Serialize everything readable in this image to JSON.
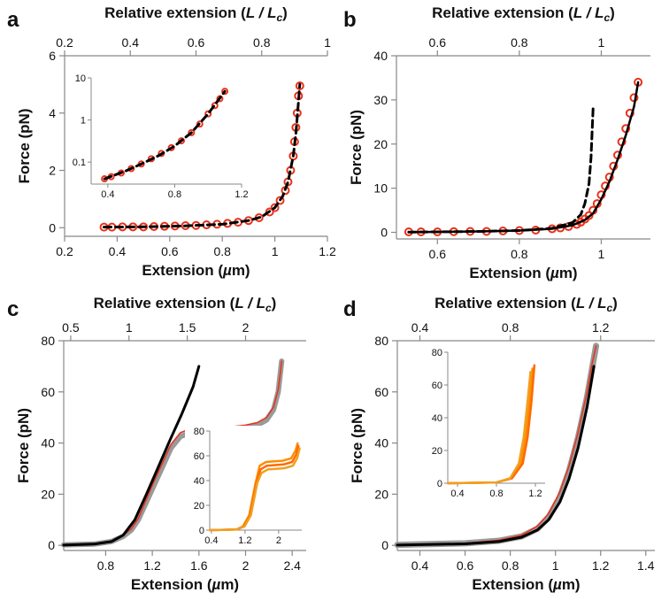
{
  "panels": [
    "a",
    "b",
    "c",
    "d"
  ],
  "chart_data": [
    {
      "panel": "a",
      "type": "scatter",
      "xlabel": "Extension (µm)",
      "ylabel": "Force (pN)",
      "top_xlabel": "Relative extension (L / Lc)",
      "xlim": [
        0.2,
        1.2
      ],
      "ylim": [
        -0.3,
        6
      ],
      "top_xlim": [
        0.2,
        1.0
      ],
      "x_ticks": [
        "0.2",
        "0.4",
        "0.6",
        "0.8",
        "1",
        "1.2"
      ],
      "y_ticks": [
        "0",
        "2",
        "4",
        "6"
      ],
      "top_ticks": [
        "0.2",
        "0.4",
        "0.6",
        "0.8",
        "1"
      ],
      "series": [
        {
          "kind": "markers",
          "color": "#e8321c",
          "x": [
            0.35,
            0.38,
            0.42,
            0.46,
            0.5,
            0.54,
            0.58,
            0.62,
            0.66,
            0.7,
            0.74,
            0.78,
            0.82,
            0.86,
            0.9,
            0.94,
            0.98,
            1.0,
            1.02,
            1.04,
            1.05,
            1.06,
            1.07,
            1.075,
            1.08,
            1.085,
            1.09,
            1.095
          ],
          "y": [
            0.02,
            0.02,
            0.03,
            0.03,
            0.03,
            0.04,
            0.05,
            0.06,
            0.07,
            0.08,
            0.1,
            0.12,
            0.15,
            0.19,
            0.25,
            0.35,
            0.55,
            0.7,
            0.95,
            1.3,
            1.6,
            2.0,
            2.5,
            3.0,
            3.5,
            4.0,
            4.6,
            4.95
          ]
        },
        {
          "kind": "line",
          "style": "dashed",
          "color": "#000000",
          "x": [
            0.35,
            0.5,
            0.65,
            0.8,
            0.9,
            0.95,
            1.0,
            1.03,
            1.05,
            1.07,
            1.08,
            1.09,
            1.095
          ],
          "y": [
            0.02,
            0.03,
            0.06,
            0.12,
            0.25,
            0.38,
            0.7,
            1.1,
            1.6,
            2.5,
            3.3,
            4.4,
            5.0
          ]
        }
      ],
      "inset": {
        "xlim": [
          0.3,
          1.2
        ],
        "ylim_log": [
          0.03,
          10
        ],
        "x_ticks": [
          "0.4",
          "0.8",
          "1.2"
        ],
        "y_ticks": [
          "0.1",
          "1",
          "10"
        ],
        "series": [
          {
            "kind": "markers",
            "color": "#e8321c",
            "x": [
              0.38,
              0.42,
              0.48,
              0.54,
              0.6,
              0.66,
              0.72,
              0.78,
              0.84,
              0.9,
              0.95,
              1.0,
              1.04,
              1.07,
              1.1
            ],
            "y": [
              0.04,
              0.045,
              0.055,
              0.07,
              0.09,
              0.12,
              0.16,
              0.22,
              0.32,
              0.5,
              0.8,
              1.4,
              2.2,
              3.2,
              4.8
            ]
          },
          {
            "kind": "line",
            "style": "dashed",
            "color": "#000000",
            "x": [
              0.38,
              0.5,
              0.6,
              0.7,
              0.8,
              0.9,
              1.0,
              1.05,
              1.1
            ],
            "y": [
              0.04,
              0.06,
              0.09,
              0.14,
              0.24,
              0.5,
              1.4,
              2.6,
              4.8
            ]
          }
        ]
      }
    },
    {
      "panel": "b",
      "type": "scatter",
      "xlabel": "Extension (µm)",
      "ylabel": "Force (pN)",
      "top_xlabel": "Relative extension (L / Lc)",
      "xlim": [
        0.5,
        1.12
      ],
      "ylim": [
        -1.5,
        40
      ],
      "top_xlim": [
        0.5,
        1.12
      ],
      "x_ticks": [
        "0.6",
        "0.8",
        "1"
      ],
      "y_ticks": [
        "0",
        "10",
        "20",
        "30",
        "40"
      ],
      "top_ticks": [
        "0.6",
        "0.8",
        "1"
      ],
      "series": [
        {
          "kind": "markers",
          "color": "#e8321c",
          "x": [
            0.53,
            0.56,
            0.6,
            0.64,
            0.68,
            0.72,
            0.76,
            0.8,
            0.84,
            0.88,
            0.9,
            0.92,
            0.94,
            0.95,
            0.96,
            0.97,
            0.98,
            0.99,
            1.0,
            1.01,
            1.02,
            1.03,
            1.04,
            1.05,
            1.06,
            1.07,
            1.08,
            1.09
          ],
          "y": [
            0.1,
            0.1,
            0.1,
            0.15,
            0.2,
            0.2,
            0.3,
            0.4,
            0.5,
            0.8,
            1.0,
            1.3,
            1.8,
            2.3,
            3.0,
            3.8,
            5.0,
            6.5,
            8.5,
            10.5,
            12.5,
            15.0,
            17.5,
            20.5,
            23.5,
            27.0,
            30.5,
            34.0
          ]
        },
        {
          "kind": "line",
          "style": "solid",
          "color": "#000000",
          "x": [
            0.53,
            0.7,
            0.8,
            0.88,
            0.93,
            0.96,
            0.98,
            1.0,
            1.02,
            1.04,
            1.06,
            1.08,
            1.09
          ],
          "y": [
            0.05,
            0.2,
            0.4,
            0.8,
            1.6,
            2.8,
            4.3,
            7.5,
            11.5,
            16.5,
            22.0,
            28.5,
            34.0
          ]
        },
        {
          "kind": "line",
          "style": "dashed",
          "color": "#000000",
          "x": [
            0.53,
            0.7,
            0.8,
            0.88,
            0.93,
            0.95,
            0.96,
            0.97,
            0.975,
            0.98
          ],
          "y": [
            0.05,
            0.2,
            0.4,
            0.9,
            2.2,
            4.0,
            6.5,
            11.0,
            17.0,
            28.0
          ]
        }
      ]
    },
    {
      "panel": "c",
      "type": "line",
      "xlabel": "Extension (µm)",
      "ylabel": "Force (pN)",
      "top_xlabel": "Relative extension (L / Lc)",
      "xlim": [
        0.44,
        2.52
      ],
      "ylim": [
        -2,
        80
      ],
      "top_xlim": [
        0.44,
        2.52
      ],
      "x_ticks": [
        "0.8",
        "1.2",
        "1.6",
        "2",
        "2.4"
      ],
      "y_ticks": [
        "0",
        "20",
        "40",
        "60",
        "80"
      ],
      "top_ticks": [
        "0.5",
        "1",
        "1.5",
        "2"
      ],
      "series": [
        {
          "kind": "line",
          "color": "#9a9a9a",
          "width": 6,
          "x": [
            0.44,
            0.7,
            0.85,
            0.95,
            1.02,
            1.08,
            1.14,
            1.2,
            1.28,
            1.36,
            1.44,
            1.52,
            1.6,
            1.7,
            1.8,
            1.9,
            2.0,
            2.1,
            2.18,
            2.24,
            2.28,
            2.3,
            2.31
          ],
          "y": [
            0.2,
            0.5,
            1.5,
            3.5,
            6.0,
            10.0,
            16.0,
            22.0,
            30.0,
            38.0,
            42.5,
            44.0,
            44.5,
            45.0,
            45.0,
            45.3,
            45.8,
            47.0,
            49.0,
            53.0,
            60.0,
            68.0,
            72.0
          ]
        },
        {
          "kind": "line",
          "color": "#e8321c",
          "width": 1.5,
          "x": [
            0.44,
            0.7,
            0.85,
            0.95,
            1.02,
            1.08,
            1.14,
            1.2,
            1.28,
            1.36,
            1.44,
            1.52,
            1.6,
            1.7,
            1.8,
            1.9,
            2.0,
            2.1,
            2.18,
            2.24,
            2.28,
            2.3,
            2.31
          ],
          "y": [
            0.2,
            0.5,
            1.5,
            3.8,
            6.5,
            10.5,
            17.0,
            23.5,
            31.5,
            39.5,
            44.0,
            45.5,
            46.0,
            46.2,
            46.2,
            46.5,
            47.0,
            48.0,
            50.0,
            54.0,
            61.0,
            68.0,
            72.0
          ]
        },
        {
          "kind": "line",
          "color": "#000000",
          "width": 3,
          "x": [
            0.44,
            0.7,
            0.85,
            0.95,
            1.05,
            1.15,
            1.25,
            1.35,
            1.45,
            1.55,
            1.6
          ],
          "y": [
            0.1,
            0.5,
            1.5,
            4.0,
            10.0,
            20.0,
            30.5,
            41.0,
            51.0,
            62.0,
            70.0
          ]
        }
      ],
      "inset": {
        "xlim": [
          0.36,
          2.55
        ],
        "ylim": [
          0,
          80
        ],
        "x_ticks": [
          "0.4",
          "1.2",
          "2"
        ],
        "y_ticks": [
          "0",
          "20",
          "40",
          "60",
          "80"
        ],
        "series": [
          {
            "kind": "line",
            "color": "#ff8c00",
            "x": [
              0.36,
              1.0,
              1.15,
              1.3,
              1.45,
              1.55,
              1.7,
              1.9,
              2.1,
              2.3,
              2.4,
              2.45
            ],
            "y": [
              0,
              0.5,
              3,
              12,
              38,
              52,
              55,
              55.5,
              56,
              58,
              64,
              70
            ]
          },
          {
            "kind": "line",
            "color": "#ff6a00",
            "x": [
              0.36,
              1.0,
              1.17,
              1.32,
              1.47,
              1.57,
              1.72,
              1.92,
              2.12,
              2.32,
              2.42,
              2.47
            ],
            "y": [
              0,
              0.5,
              3,
              12,
              38,
              49,
              52,
              52.5,
              53,
              55,
              61,
              68
            ]
          },
          {
            "kind": "line",
            "color": "#f0a020",
            "x": [
              0.36,
              1.0,
              1.19,
              1.34,
              1.49,
              1.59,
              1.74,
              1.94,
              2.14,
              2.34,
              2.44,
              2.5
            ],
            "y": [
              0,
              0.5,
              3,
              12,
              38,
              46,
              49,
              49.5,
              50,
              52,
              58,
              66
            ]
          }
        ]
      }
    },
    {
      "panel": "d",
      "type": "line",
      "xlabel": "Extension (µm)",
      "ylabel": "Force (pN)",
      "top_xlabel": "Relative extension (L / Lc)",
      "xlim": [
        0.3,
        1.44
      ],
      "ylim": [
        -2,
        80
      ],
      "top_xlim": [
        0.3,
        1.44
      ],
      "x_ticks": [
        "0.4",
        "0.6",
        "0.8",
        "1",
        "1.2",
        "1.4"
      ],
      "y_ticks": [
        "0",
        "20",
        "40",
        "60",
        "80"
      ],
      "top_ticks": [
        "0.4",
        "0.8",
        "1.2"
      ],
      "series": [
        {
          "kind": "line",
          "color": "#9a9a9a",
          "width": 7,
          "x": [
            0.3,
            0.6,
            0.75,
            0.85,
            0.92,
            0.97,
            1.02,
            1.06,
            1.1,
            1.14,
            1.16,
            1.18
          ],
          "y": [
            0.2,
            0.8,
            1.8,
            3.5,
            6.5,
            11.0,
            19.0,
            29.0,
            42.0,
            58.0,
            68.0,
            78.0
          ]
        },
        {
          "kind": "line",
          "color": "#e8321c",
          "width": 1.5,
          "x": [
            0.3,
            0.6,
            0.75,
            0.85,
            0.92,
            0.97,
            1.02,
            1.06,
            1.1,
            1.14,
            1.16,
            1.18
          ],
          "y": [
            0.2,
            0.8,
            2.0,
            4.0,
            7.5,
            12.5,
            21.0,
            31.0,
            44.0,
            60.0,
            70.0,
            78.0
          ]
        },
        {
          "kind": "line",
          "color": "#000000",
          "width": 3,
          "x": [
            0.3,
            0.6,
            0.75,
            0.85,
            0.92,
            0.97,
            1.02,
            1.06,
            1.1,
            1.14,
            1.17
          ],
          "y": [
            0.1,
            0.6,
            1.5,
            3.2,
            6.0,
            10.0,
            17.0,
            26.0,
            38.0,
            54.0,
            70.0
          ]
        }
      ],
      "inset": {
        "xlim": [
          0.3,
          1.3
        ],
        "ylim": [
          0,
          80
        ],
        "x_ticks": [
          "0.4",
          "0.8",
          "1.2"
        ],
        "y_ticks": [
          "0",
          "20",
          "40",
          "60",
          "80"
        ],
        "series": [
          {
            "kind": "line",
            "color": "#ff8c00",
            "x": [
              0.3,
              0.8,
              0.95,
              1.05,
              1.1,
              1.14,
              1.17
            ],
            "y": [
              0,
              0.5,
              3,
              12,
              28,
              50,
              70
            ]
          },
          {
            "kind": "line",
            "color": "#ff6a00",
            "x": [
              0.3,
              0.8,
              0.96,
              1.07,
              1.12,
              1.16,
              1.19
            ],
            "y": [
              0,
              0.5,
              3,
              12,
              28,
              50,
              72
            ]
          },
          {
            "kind": "line",
            "color": "#f0a020",
            "x": [
              0.3,
              0.8,
              0.94,
              1.03,
              1.08,
              1.12,
              1.15
            ],
            "y": [
              0,
              0.5,
              3,
              12,
              28,
              50,
              68
            ]
          }
        ]
      }
    }
  ]
}
